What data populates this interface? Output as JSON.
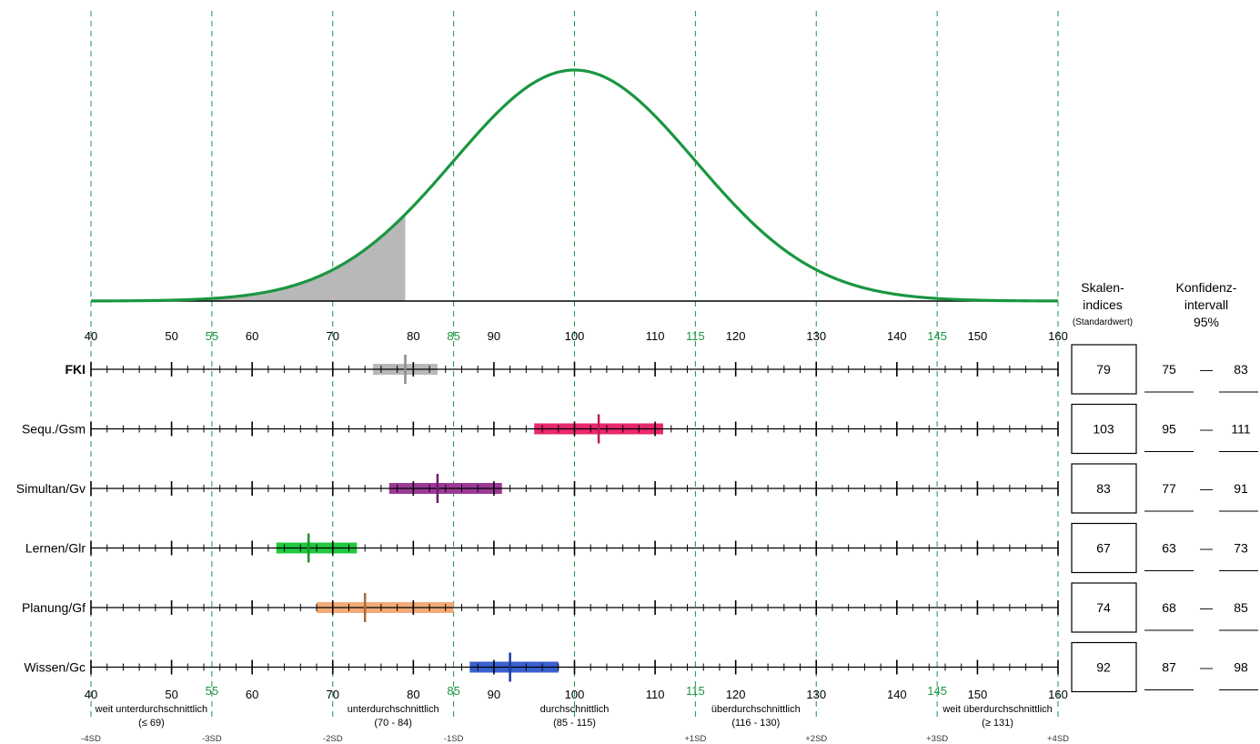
{
  "chart_data": {
    "type": "scatter",
    "title": "",
    "xlim": [
      40,
      160
    ],
    "curve": {
      "type": "normal",
      "mean": 100,
      "sd": 15,
      "shaded_below": 79,
      "line_color": "#1a9641",
      "shade_color": "#b8b8b8"
    },
    "ticks_top": [
      "40",
      "50",
      "55",
      "60",
      "70",
      "80",
      "85",
      "90",
      "100",
      "110",
      "115",
      "120",
      "130",
      "140",
      "145",
      "150",
      "160"
    ],
    "tick_values_top": [
      40,
      50,
      55,
      60,
      70,
      80,
      85,
      90,
      100,
      110,
      115,
      120,
      130,
      140,
      145,
      150,
      160
    ],
    "highlight_ticks": [
      55,
      85,
      115,
      145
    ],
    "highlight_color": "#1a9641",
    "sd_lines": [
      40,
      55,
      70,
      85,
      100,
      115,
      130,
      145,
      160
    ],
    "sd_labels": [
      {
        "x": 40,
        "text": "-4SD"
      },
      {
        "x": 55,
        "text": "-3SD"
      },
      {
        "x": 70,
        "text": "-2SD"
      },
      {
        "x": 85,
        "text": "-1SD"
      },
      {
        "x": 115,
        "text": "+1SD"
      },
      {
        "x": 130,
        "text": "+2SD"
      },
      {
        "x": 145,
        "text": "+3SD"
      },
      {
        "x": 160,
        "text": "+4SD"
      }
    ],
    "categories": [
      {
        "center": 47.5,
        "label": "weit unterdurchschnittlich",
        "range": "(≤ 69)"
      },
      {
        "center": 77.5,
        "label": "unterdurchschnittlich",
        "range": "(70 - 84)"
      },
      {
        "center": 100,
        "label": "durchschnittlich",
        "range": "(85 - 115)"
      },
      {
        "center": 122.5,
        "label": "überdurchschnittlich",
        "range": "(116 - 130)"
      },
      {
        "center": 152.5,
        "label": "weit überdurchschnittlich",
        "range": "(≥ 131)"
      }
    ],
    "column_headers": {
      "score": [
        "Skalen-",
        "indices",
        "(Standardwert)"
      ],
      "ci": [
        "Konfidenz-",
        "intervall",
        "95%"
      ]
    },
    "series": [
      {
        "name": "FKI",
        "bold": true,
        "value": 79,
        "ci_low": 75,
        "ci_high": 83,
        "color": "#b8b8b8",
        "marker_color": "#8c8c8c",
        "score_label": "79",
        "ci_low_label": "75",
        "ci_high_label": "83"
      },
      {
        "name": "Sequ./Gsm",
        "bold": false,
        "value": 103,
        "ci_low": 95,
        "ci_high": 111,
        "color": "#e8286e",
        "marker_color": "#b81c55",
        "score_label": "103",
        "ci_low_label": "95",
        "ci_high_label": "111"
      },
      {
        "name": "Simultan/Gv",
        "bold": false,
        "value": 83,
        "ci_low": 77,
        "ci_high": 91,
        "color": "#9b3a97",
        "marker_color": "#6b1f68",
        "score_label": "83",
        "ci_low_label": "77",
        "ci_high_label": "91"
      },
      {
        "name": "Lernen/Glr",
        "bold": false,
        "value": 67,
        "ci_low": 63,
        "ci_high": 73,
        "color": "#22c840",
        "marker_color": "#15962b",
        "score_label": "67",
        "ci_low_label": "63",
        "ci_high_label": "73"
      },
      {
        "name": "Planung/Gf",
        "bold": false,
        "value": 74,
        "ci_low": 68,
        "ci_high": 85,
        "color": "#f2ab78",
        "marker_color": "#a86a3a",
        "score_label": "74",
        "ci_low_label": "68",
        "ci_high_label": "85"
      },
      {
        "name": "Wissen/Gc",
        "bold": false,
        "value": 92,
        "ci_low": 87,
        "ci_high": 98,
        "color": "#3a60d0",
        "marker_color": "#1d3a9e",
        "score_label": "92",
        "ci_low_label": "87",
        "ci_high_label": "98"
      }
    ],
    "ci_separator": "—"
  }
}
